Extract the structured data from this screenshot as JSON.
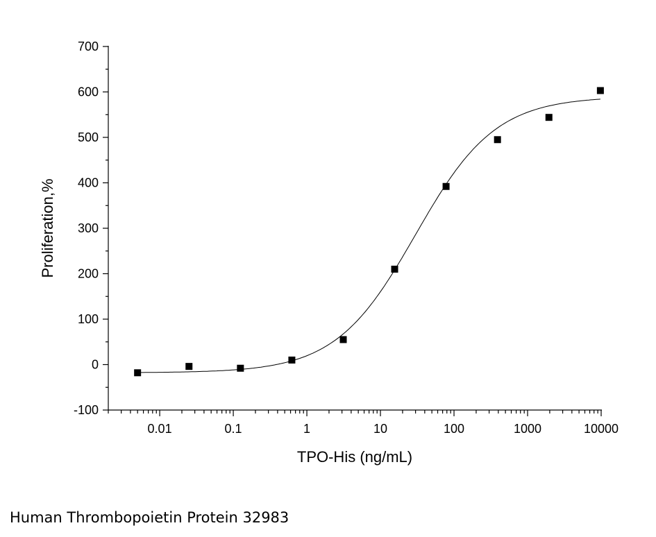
{
  "chart_data": {
    "type": "scatter",
    "xlabel": "TPO-His (ng/mL)",
    "ylabel": "Proliferation,%",
    "x_scale": "log",
    "xlim": [
      0.002,
      10000
    ],
    "ylim": [
      -100,
      700
    ],
    "x_ticks": [
      {
        "value": 0.01,
        "label": "0.01"
      },
      {
        "value": 0.1,
        "label": "0.1"
      },
      {
        "value": 1,
        "label": "1"
      },
      {
        "value": 10,
        "label": "10"
      },
      {
        "value": 100,
        "label": "100"
      },
      {
        "value": 1000,
        "label": "1000"
      },
      {
        "value": 10000,
        "label": "10000"
      }
    ],
    "y_ticks": [
      {
        "value": -100,
        "label": "-100"
      },
      {
        "value": 0,
        "label": "0"
      },
      {
        "value": 100,
        "label": "100"
      },
      {
        "value": 200,
        "label": "200"
      },
      {
        "value": 300,
        "label": "300"
      },
      {
        "value": 400,
        "label": "400"
      },
      {
        "value": 500,
        "label": "500"
      },
      {
        "value": 600,
        "label": "600"
      },
      {
        "value": 700,
        "label": "700"
      }
    ],
    "series": [
      {
        "marker": "square",
        "color": "#000000",
        "points": [
          {
            "x": 0.005,
            "y": -18
          },
          {
            "x": 0.025,
            "y": -4
          },
          {
            "x": 0.125,
            "y": -8
          },
          {
            "x": 0.625,
            "y": 10
          },
          {
            "x": 3.125,
            "y": 55
          },
          {
            "x": 15.6,
            "y": 210
          },
          {
            "x": 78,
            "y": 392
          },
          {
            "x": 390,
            "y": 495
          },
          {
            "x": 1950,
            "y": 544
          },
          {
            "x": 9760,
            "y": 603
          }
        ]
      }
    ],
    "fit_curve": {
      "model": "4PL",
      "bottom": -18,
      "top": 590,
      "ec50": 30,
      "hill": 0.8,
      "color": "#000000"
    },
    "grid": false,
    "legend": "none"
  },
  "caption": "Human Thrombopoietin Protein 32983"
}
